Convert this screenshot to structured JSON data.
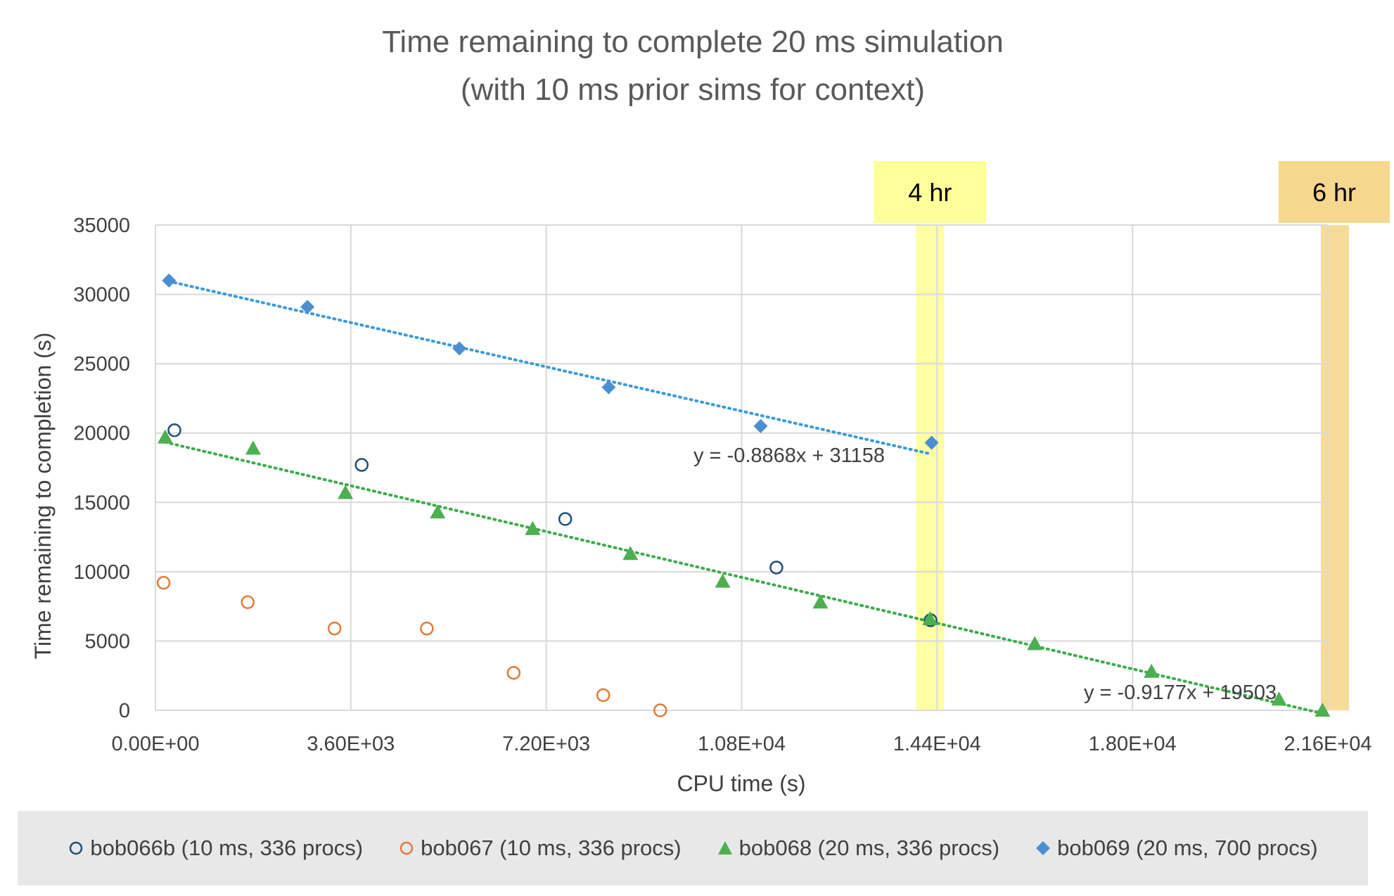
{
  "chart_data": {
    "type": "scatter",
    "title": "Time remaining to complete 20 ms simulation",
    "subtitle": "(with 10 ms prior sims for context)",
    "xlabel": "CPU time (s)",
    "ylabel": "Time remaining to completion (s)",
    "xlim": [
      0,
      21600
    ],
    "ylim": [
      0,
      35000
    ],
    "x_ticks": [
      0,
      3600,
      7200,
      10800,
      14400,
      18000,
      21600
    ],
    "x_tick_labels": [
      "0.00E+00",
      "3.60E+03",
      "7.20E+03",
      "1.08E+04",
      "1.44E+04",
      "1.80E+04",
      "2.16E+04"
    ],
    "y_ticks": [
      0,
      5000,
      10000,
      15000,
      20000,
      25000,
      30000,
      35000
    ],
    "y_tick_labels": [
      "0",
      "5000",
      "10000",
      "15000",
      "20000",
      "25000",
      "30000",
      "35000"
    ],
    "grid": true,
    "legend_position": "bottom",
    "series": [
      {
        "name": "bob066b (10 ms, 336 procs)",
        "marker": "open-circle",
        "color": "#1f4e79",
        "points": [
          [
            350,
            20200
          ],
          [
            3800,
            17700
          ],
          [
            7550,
            13800
          ],
          [
            11440,
            10300
          ],
          [
            14280,
            6500
          ]
        ]
      },
      {
        "name": "bob067 (10 ms, 336 procs)",
        "marker": "open-circle",
        "color": "#e07b39",
        "points": [
          [
            150,
            9200
          ],
          [
            1700,
            7800
          ],
          [
            3300,
            5900
          ],
          [
            5000,
            5900
          ],
          [
            6600,
            2700
          ],
          [
            8250,
            1100
          ],
          [
            9300,
            0
          ]
        ]
      },
      {
        "name": "bob068 (20 ms, 336 procs)",
        "marker": "triangle",
        "color": "#4caf50",
        "points": [
          [
            180,
            19700
          ],
          [
            1800,
            18900
          ],
          [
            3500,
            15700
          ],
          [
            5200,
            14300
          ],
          [
            6950,
            13100
          ],
          [
            8750,
            11300
          ],
          [
            10450,
            9300
          ],
          [
            12250,
            7800
          ],
          [
            14270,
            6600
          ],
          [
            16200,
            4800
          ],
          [
            18350,
            2800
          ],
          [
            20700,
            800
          ],
          [
            21500,
            0
          ]
        ]
      },
      {
        "name": "bob069 (20 ms, 700 procs)",
        "marker": "diamond",
        "color": "#4a90d0",
        "points": [
          [
            250,
            31000
          ],
          [
            2800,
            29100
          ],
          [
            5600,
            26100
          ],
          [
            8350,
            23300
          ],
          [
            11150,
            20500
          ],
          [
            14300,
            19300
          ]
        ]
      }
    ],
    "trendlines": [
      {
        "series": "bob069 (20 ms, 700 procs)",
        "slope": -0.8868,
        "intercept": 31158,
        "x_range": [
          250,
          14300
        ],
        "color": "#3a9ad9",
        "label": "y = -0.8868x + 31158"
      },
      {
        "series": "bob068 (20 ms, 336 procs)",
        "slope": -0.9177,
        "intercept": 19503,
        "x_range": [
          180,
          21500
        ],
        "color": "#3cab4c",
        "label": "y = -0.9177x + 19503"
      }
    ],
    "annotations": [
      {
        "label": "4 hr",
        "x": 14400,
        "band_color": "#ffff99"
      },
      {
        "label": "6 hr",
        "x": 21600,
        "band_color": "#f5d78e"
      }
    ]
  }
}
